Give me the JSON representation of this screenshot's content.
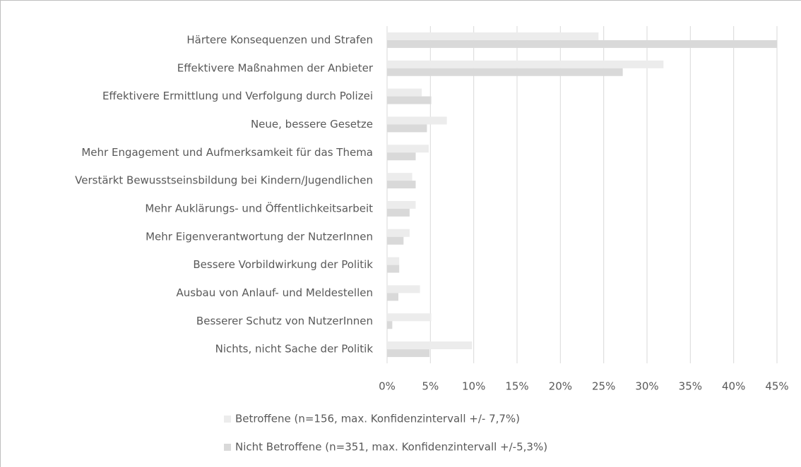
{
  "chart_data": {
    "type": "bar",
    "orientation": "horizontal",
    "categories": [
      "Härtere Konsequenzen und Strafen",
      "Effektivere Maßnahmen der Anbieter",
      "Effektivere Ermittlung und Verfolgung durch Polizei",
      "Neue, bessere Gesetze",
      "Mehr Engagement und Aufmerksamkeit für das Thema",
      "Verstärkt Bewusstseinsbildung bei Kindern/Jugendlichen",
      "Mehr Auklärungs- und Öffentlichkeitsarbeit",
      "Mehr Eigenverantwortung der NutzerInnen",
      "Bessere Vorbildwirkung der Politik",
      "Ausbau von Anlauf- und Meldestellen",
      "Besserer Schutz von NutzerInnen",
      "Nichts, nicht Sache der Politik"
    ],
    "series": [
      {
        "name": "Betroffene (n=156, max. Konfidenzintervall +/- 7,7%)",
        "color": "#ececec",
        "values": [
          24.4,
          31.9,
          4.0,
          6.9,
          4.8,
          2.9,
          3.3,
          2.6,
          1.4,
          3.8,
          5.1,
          9.8
        ]
      },
      {
        "name": "Nicht Betroffene (n=351, max. Konfidenzintervall +/-5,3%)",
        "color": "#d9d9d9",
        "values": [
          45.0,
          27.2,
          5.1,
          4.6,
          3.3,
          3.3,
          2.6,
          1.9,
          1.4,
          1.3,
          0.6,
          4.9
        ]
      }
    ],
    "xlim": [
      0,
      45
    ],
    "xticks": [
      {
        "value": 0,
        "label": "0%"
      },
      {
        "value": 5,
        "label": "5%"
      },
      {
        "value": 10,
        "label": "10%"
      },
      {
        "value": 15,
        "label": "15%"
      },
      {
        "value": 20,
        "label": "20%"
      },
      {
        "value": 25,
        "label": "25%"
      },
      {
        "value": 30,
        "label": "30%"
      },
      {
        "value": 35,
        "label": "35%"
      },
      {
        "value": 40,
        "label": "40%"
      },
      {
        "value": 45,
        "label": "45%"
      }
    ],
    "grid": true,
    "legend": "bottom"
  }
}
